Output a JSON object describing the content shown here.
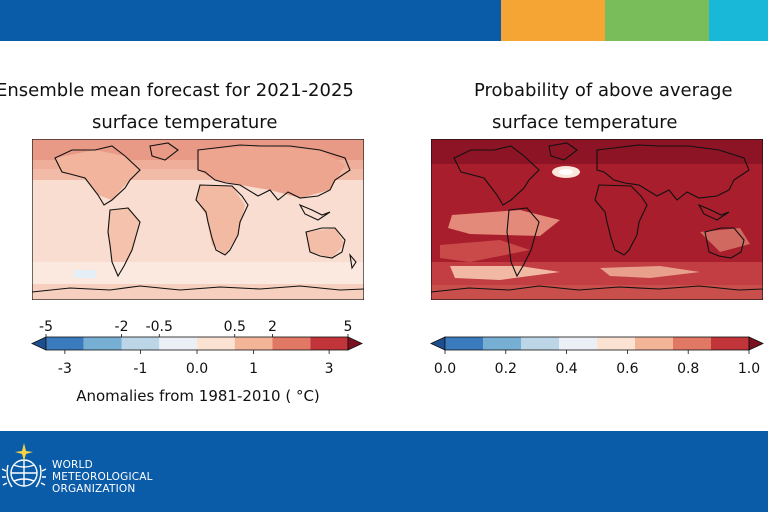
{
  "colors": {
    "brand_blue": "#0a5ca8",
    "accent_orange": "#f5a533",
    "accent_green": "#78bd5a",
    "accent_cyan": "#19b8d8"
  },
  "logo": {
    "line1": "WORLD",
    "line2": "METEOROLOGICAL",
    "line3": "ORGANIZATION",
    "icon": "wmo-emblem-icon"
  },
  "chart_data": [
    {
      "type": "heatmap",
      "title_line1": "Ensemble mean forecast for 2021-2025",
      "title_line2": "surface temperature",
      "colorbar": {
        "top_ticks": [
          "-5",
          "-2",
          "-0.5",
          "0.5",
          "2",
          "5"
        ],
        "bottom_ticks": [
          "-3",
          "-1",
          "0.0",
          "1",
          "3"
        ],
        "label": "Anomalies from 1981-2010 ( °C)",
        "colors": [
          "#1d4f8f",
          "#3a7bbd",
          "#77aed4",
          "#bcd6e8",
          "#eaf0f6",
          "#fbe2d3",
          "#f4b498",
          "#e07864",
          "#c1343a",
          "#7d1020"
        ]
      }
    },
    {
      "type": "heatmap",
      "title_line1": "Probability of above average",
      "title_line2": "surface temperature",
      "colorbar": {
        "bottom_ticks": [
          "0.0",
          "0.2",
          "0.4",
          "0.6",
          "0.8",
          "1.0"
        ],
        "colors": [
          "#1d4f8f",
          "#3a7bbd",
          "#77aed4",
          "#bcd6e8",
          "#eaf0f6",
          "#fbe2d3",
          "#f4b498",
          "#e07864",
          "#c1343a",
          "#7d1020"
        ]
      }
    }
  ]
}
